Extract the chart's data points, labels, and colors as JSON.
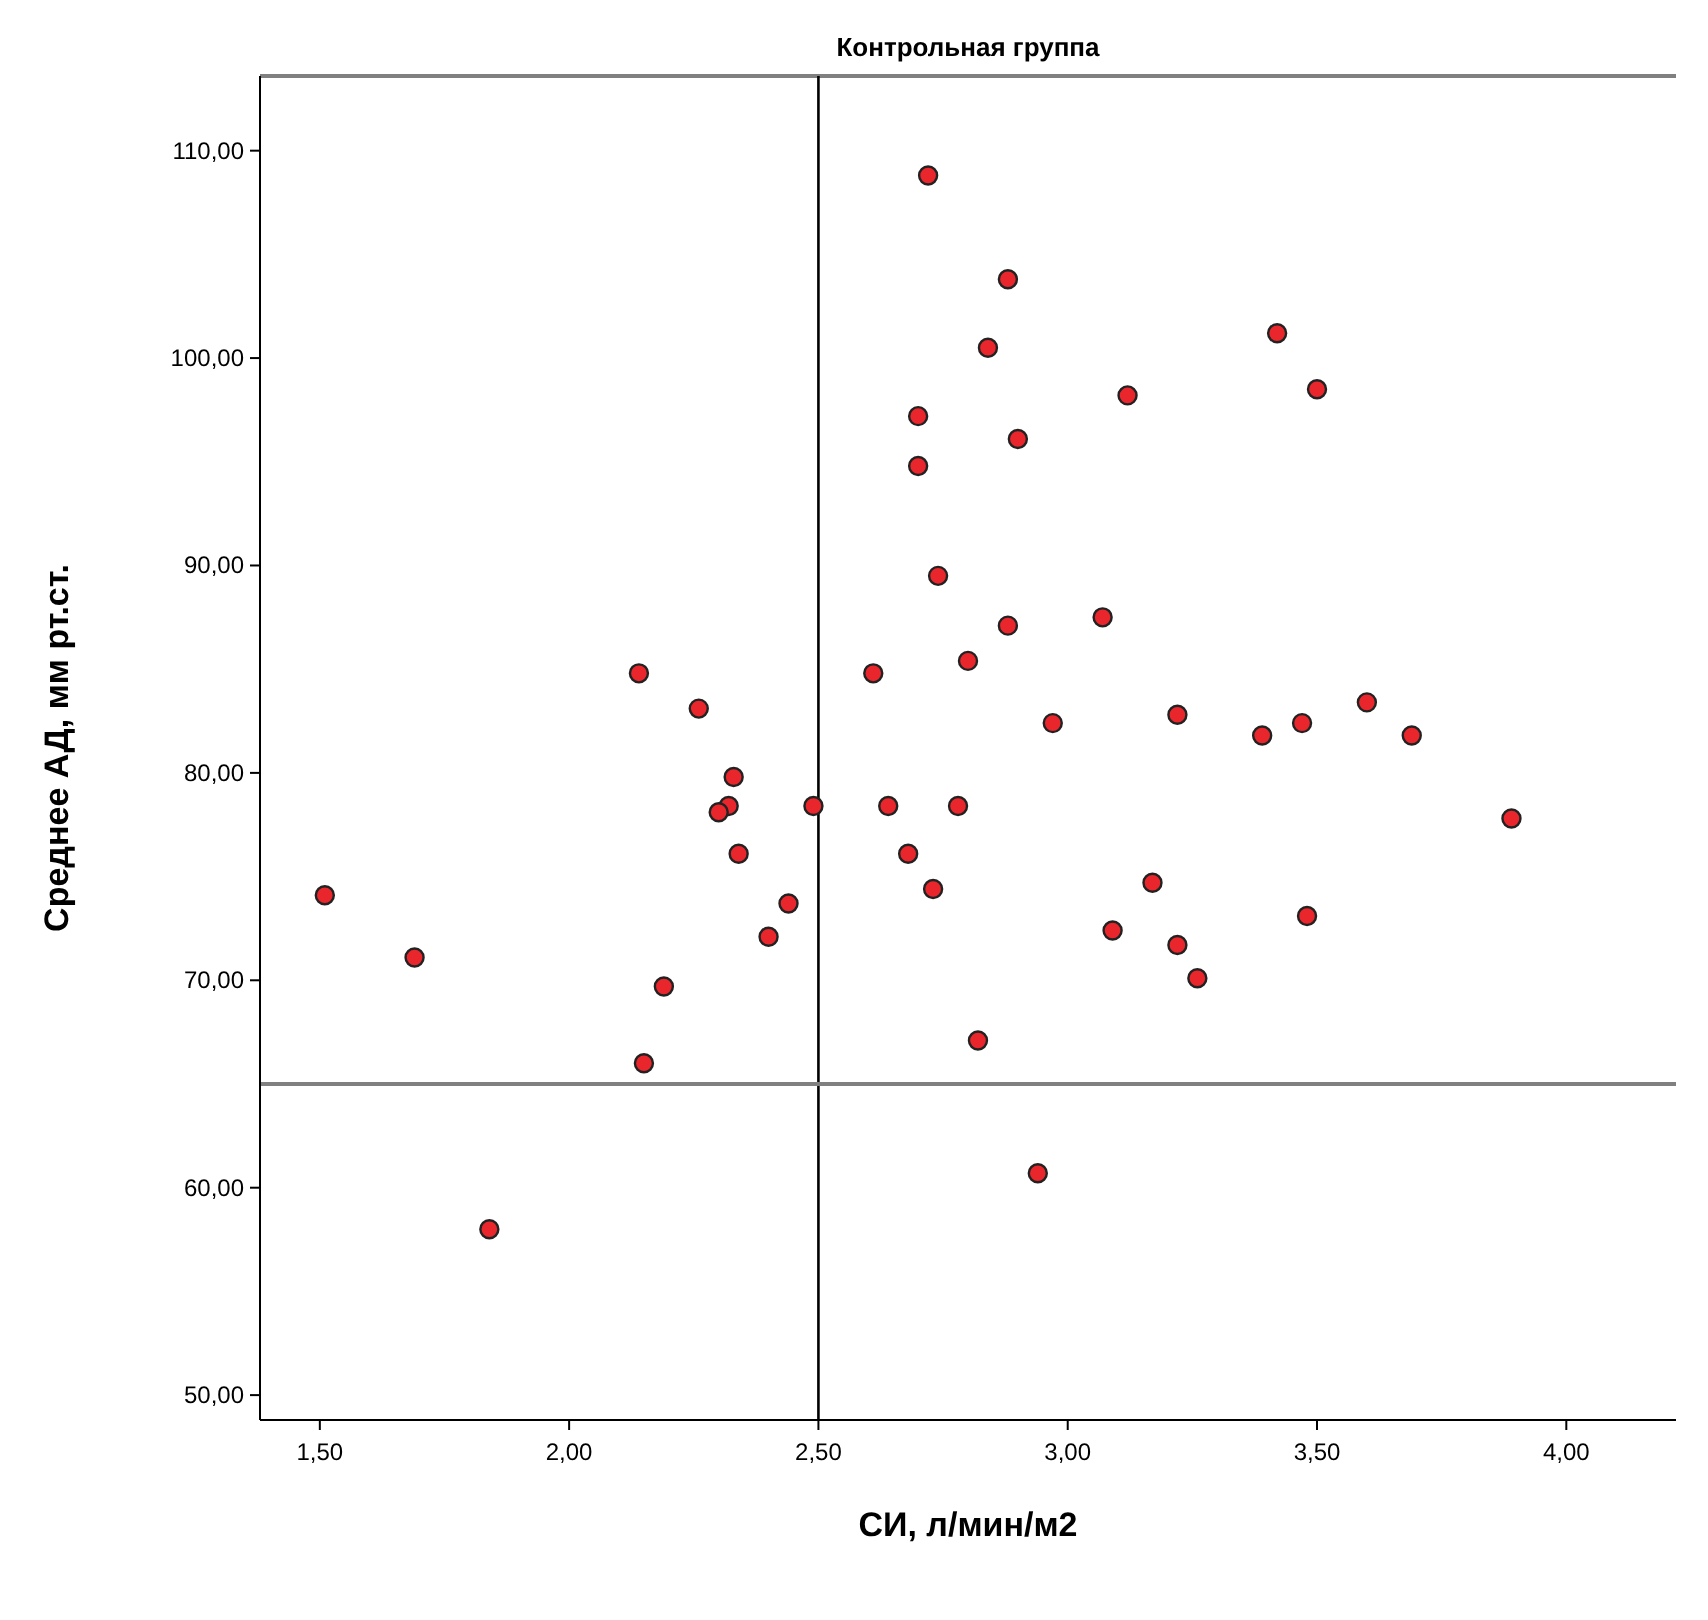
{
  "chart_data": {
    "type": "scatter",
    "title": "Контрольная группа",
    "xlabel": "СИ, л/мин/м2",
    "ylabel": "Среднее АД, мм рт.ст.",
    "xlim": [
      1.38,
      4.22
    ],
    "ylim": [
      48.8,
      113.6
    ],
    "xticks": [
      {
        "value": 1.5,
        "label": "1,50"
      },
      {
        "value": 2,
        "label": "2,00"
      },
      {
        "value": 2.5,
        "label": "2,50"
      },
      {
        "value": 3,
        "label": "3,00"
      },
      {
        "value": 3.5,
        "label": "3,50"
      },
      {
        "value": 4,
        "label": "4,00"
      }
    ],
    "yticks": [
      {
        "value": 50,
        "label": "50,00"
      },
      {
        "value": 60,
        "label": "60,00"
      },
      {
        "value": 70,
        "label": "70,00"
      },
      {
        "value": 80,
        "label": "80,00"
      },
      {
        "value": 90,
        "label": "90,00"
      },
      {
        "value": 100,
        "label": "100,00"
      },
      {
        "value": 110,
        "label": "110,00"
      }
    ],
    "grid": false,
    "marker": "circle",
    "ref_lines": [
      {
        "axis": "x",
        "value": 2.5,
        "color": "#000000"
      },
      {
        "axis": "y",
        "value": 65,
        "color": "#808080"
      }
    ],
    "series": [
      {
        "color": "#e8262c",
        "x": [
          1.51,
          1.69,
          1.84,
          2.14,
          2.26,
          2.33,
          2.32,
          2.3,
          2.34,
          2.44,
          2.4,
          2.19,
          2.15,
          2.49,
          2.72,
          2.88,
          2.84,
          3.42,
          3.5,
          3.12,
          2.7,
          2.9,
          2.7,
          2.74,
          2.88,
          3.07,
          2.61,
          2.8,
          2.97,
          3.22,
          3.39,
          3.47,
          3.6,
          3.69,
          3.89,
          2.64,
          2.78,
          2.68,
          2.73,
          3.17,
          3.09,
          3.22,
          3.26,
          3.48,
          2.82,
          2.94
        ],
        "values": [
          74.1,
          71.1,
          58,
          84.8,
          83.1,
          79.8,
          78.4,
          78.1,
          76.1,
          73.7,
          72.1,
          69.7,
          66,
          78.4,
          108.8,
          103.8,
          100.5,
          101.2,
          98.5,
          98.2,
          97.2,
          96.1,
          94.8,
          89.5,
          87.1,
          87.5,
          84.8,
          85.4,
          82.4,
          82.8,
          81.8,
          82.4,
          83.4,
          81.8,
          77.8,
          78.4,
          78.4,
          76.1,
          74.4,
          74.7,
          72.4,
          71.7,
          70.1,
          73.1,
          67.1,
          60.7
        ]
      }
    ]
  }
}
